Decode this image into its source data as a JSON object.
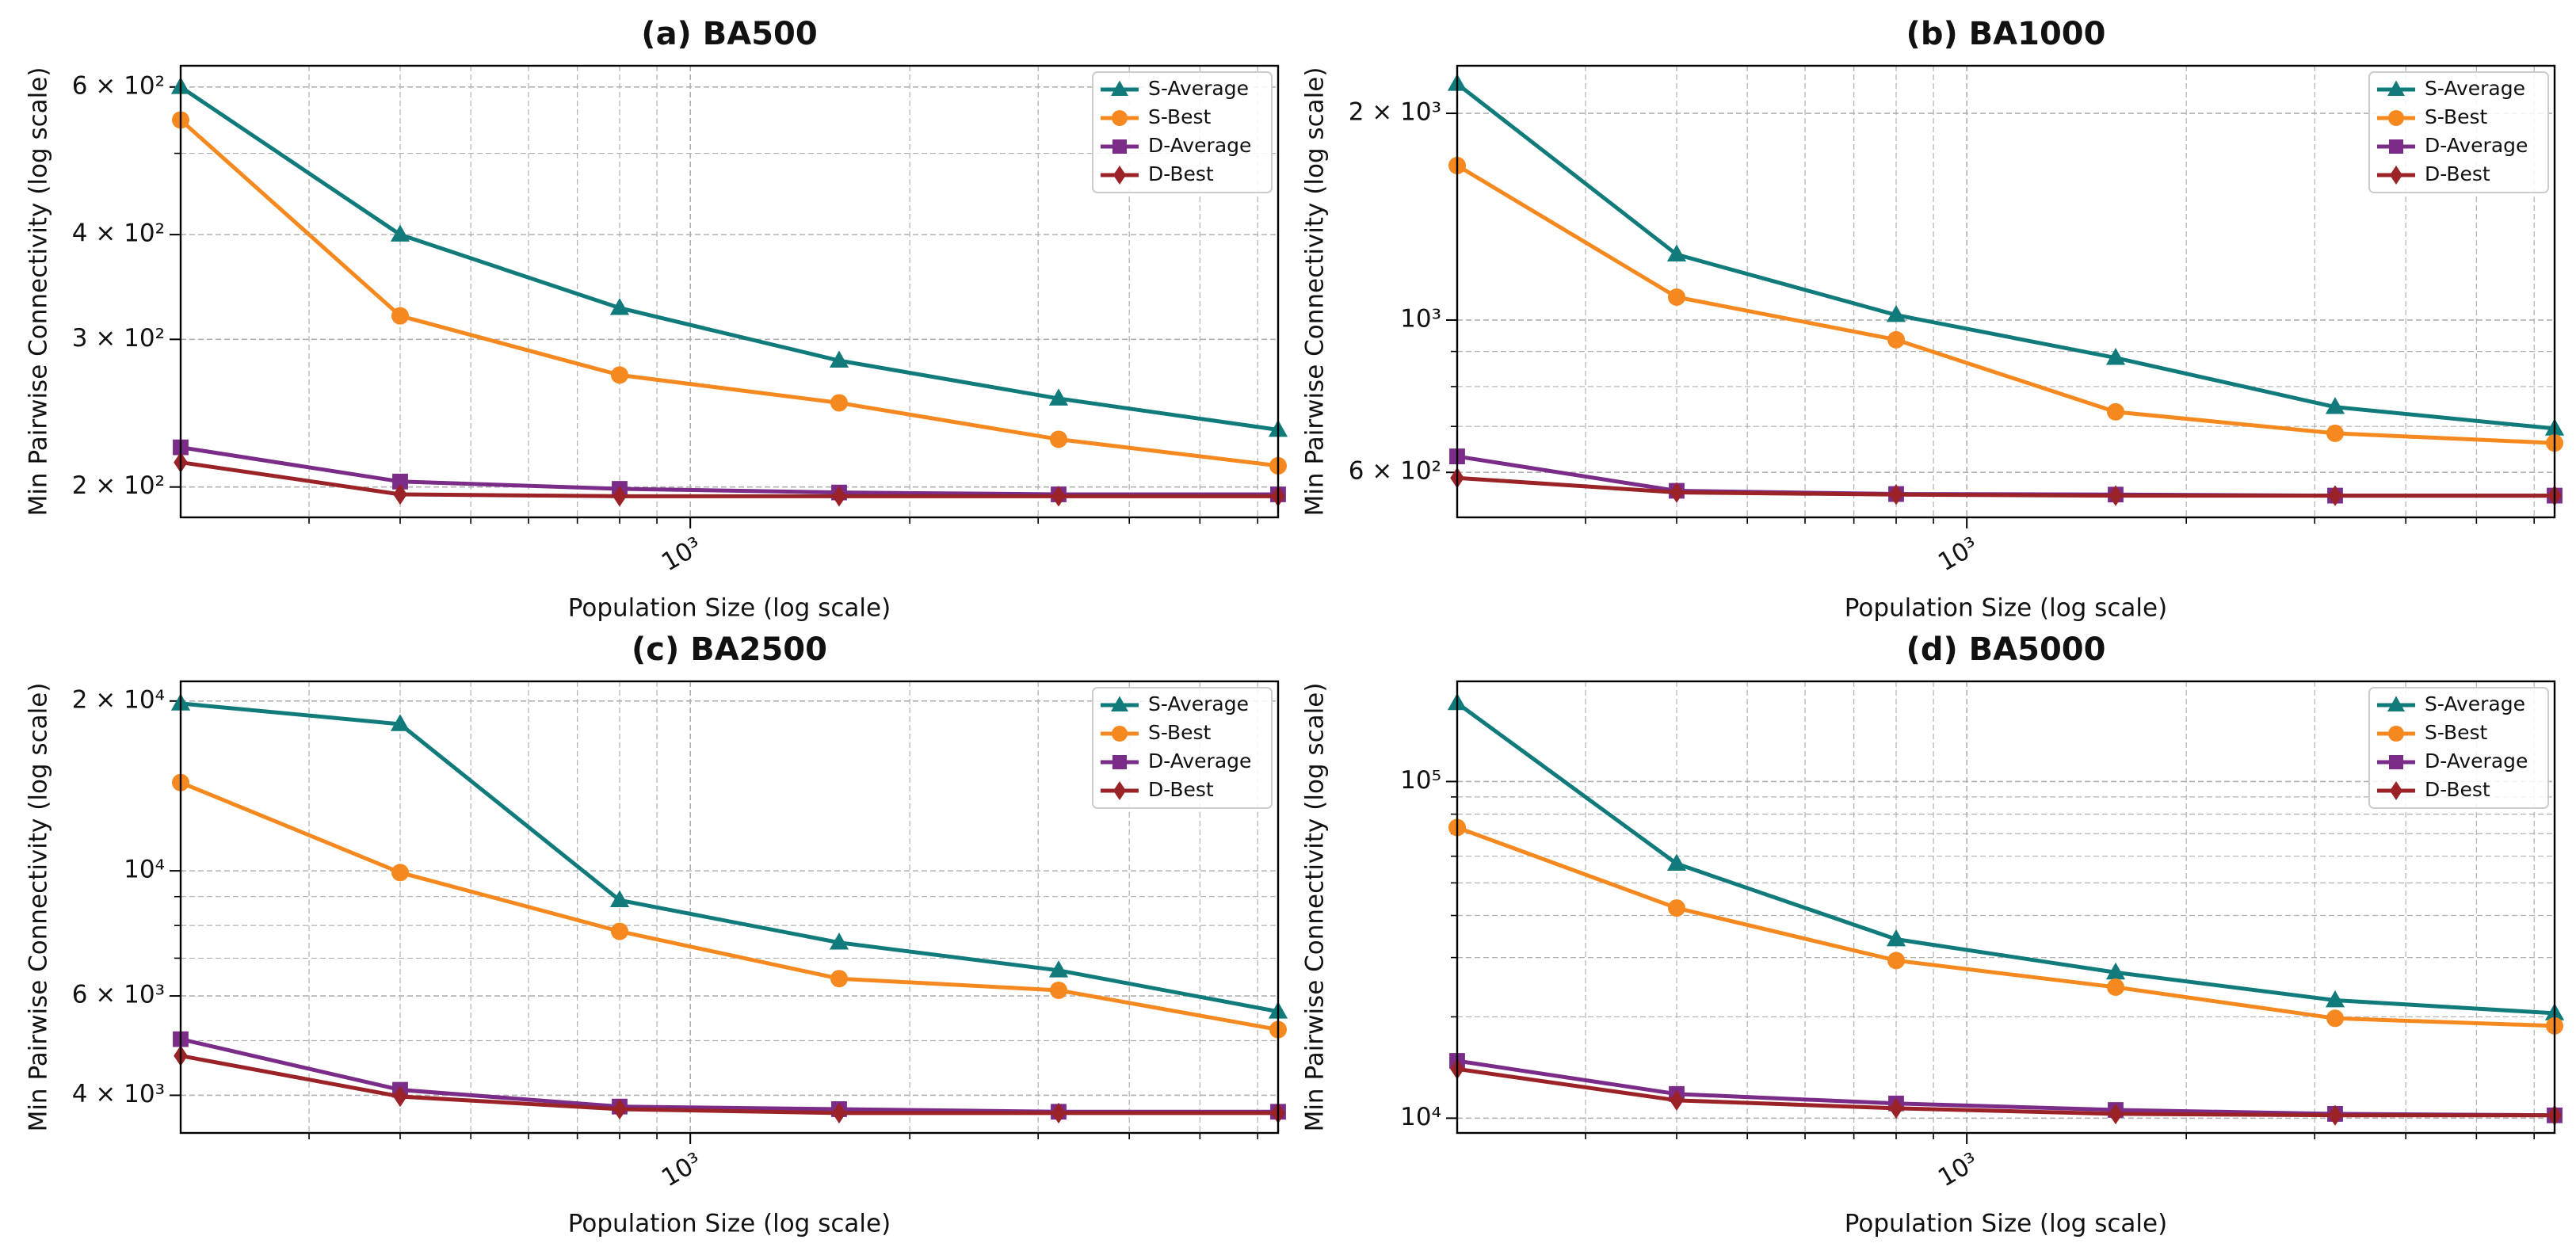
{
  "chart_data": [
    {
      "type": "line",
      "title": "(a) BA500",
      "xlabel": "Population Size (log scale)",
      "ylabel": "Min Pairwise Connectivity (log scale)",
      "xscale": "log",
      "yscale": "log",
      "grid": true,
      "legend": "upper right",
      "x": [
        200,
        400,
        800,
        1600,
        3200,
        6400
      ],
      "xlim": [
        200,
        6400
      ],
      "xticks": [
        {
          "value": 1000,
          "label": "10³"
        }
      ],
      "xminor": [
        300,
        400,
        500,
        600,
        700,
        800,
        900,
        2000,
        3000,
        4000,
        5000,
        6000
      ],
      "ylim": [
        184,
        636
      ],
      "yticks": [
        {
          "value": 200,
          "label": "2 × 10²"
        },
        {
          "value": 300,
          "label": "3 × 10²"
        },
        {
          "value": 400,
          "label": "4 × 10²"
        },
        {
          "value": 600,
          "label": "6 × 10²"
        }
      ],
      "yminor": [
        500
      ],
      "series": [
        {
          "name": "S-Average",
          "color": "#117b7b",
          "marker": "triangle",
          "values": [
            600,
            400,
            327,
            283,
            255,
            234
          ]
        },
        {
          "name": "S-Best",
          "color": "#f5891f",
          "marker": "circle",
          "values": [
            548,
            320,
            272,
            252,
            228,
            212
          ]
        },
        {
          "name": "D-Average",
          "color": "#7a2c88",
          "marker": "square",
          "values": [
            223,
            203,
            199,
            197,
            196,
            196
          ]
        },
        {
          "name": "D-Best",
          "color": "#9b2226",
          "marker": "diamond",
          "values": [
            214,
            196,
            195,
            195,
            195,
            195
          ]
        }
      ]
    },
    {
      "type": "line",
      "title": "(b) BA1000",
      "xlabel": "Population Size (log scale)",
      "ylabel": "Min Pairwise Connectivity (log scale)",
      "xscale": "log",
      "yscale": "log",
      "grid": true,
      "legend": "upper right",
      "x": [
        200,
        400,
        800,
        1600,
        3200,
        6400
      ],
      "xlim": [
        200,
        6400
      ],
      "xticks": [
        {
          "value": 1000,
          "label": "10³"
        }
      ],
      "xminor": [
        300,
        400,
        500,
        600,
        700,
        800,
        900,
        2000,
        3000,
        4000,
        5000,
        6000
      ],
      "ylim": [
        516,
        2346
      ],
      "yticks": [
        {
          "value": 600,
          "label": "6 × 10²"
        },
        {
          "value": 1000,
          "label": "10³"
        },
        {
          "value": 2000,
          "label": "2 × 10³"
        }
      ],
      "yminor": [
        700,
        800,
        900
      ],
      "series": [
        {
          "name": "S-Average",
          "color": "#117b7b",
          "marker": "triangle",
          "values": [
            2208,
            1246,
            1017,
            881,
            747,
            695
          ]
        },
        {
          "name": "S-Best",
          "color": "#f5891f",
          "marker": "circle",
          "values": [
            1679,
            1080,
            936,
            735,
            684,
            662
          ]
        },
        {
          "name": "D-Average",
          "color": "#7a2c88",
          "marker": "square",
          "values": [
            633,
            564,
            558,
            557,
            555,
            555
          ]
        },
        {
          "name": "D-Best",
          "color": "#9b2226",
          "marker": "diamond",
          "values": [
            589,
            561,
            557,
            555,
            555,
            555
          ]
        }
      ]
    },
    {
      "type": "line",
      "title": "(c) BA2500",
      "xlabel": "Population Size (log scale)",
      "ylabel": "Min Pairwise Connectivity (log scale)",
      "xscale": "log",
      "yscale": "log",
      "grid": true,
      "legend": "upper right",
      "x": [
        200,
        400,
        800,
        1600,
        3200,
        6400
      ],
      "xlim": [
        200,
        6400
      ],
      "xticks": [
        {
          "value": 1000,
          "label": "10³"
        }
      ],
      "xminor": [
        300,
        400,
        500,
        600,
        700,
        800,
        900,
        2000,
        3000,
        4000,
        5000,
        6000
      ],
      "ylim": [
        3430,
        21670
      ],
      "yticks": [
        {
          "value": 4000,
          "label": "4 × 10³"
        },
        {
          "value": 6000,
          "label": "6 × 10³"
        },
        {
          "value": 10000,
          "label": "10⁴"
        },
        {
          "value": 20000,
          "label": "2 × 10⁴"
        }
      ],
      "yminor": [
        5000,
        7000,
        8000,
        9000
      ],
      "series": [
        {
          "name": "S-Average",
          "color": "#117b7b",
          "marker": "triangle",
          "values": [
            19800,
            18200,
            8870,
            7460,
            6660,
            5630
          ]
        },
        {
          "name": "S-Best",
          "color": "#f5891f",
          "marker": "circle",
          "values": [
            14340,
            9930,
            7810,
            6440,
            6140,
            5230
          ]
        },
        {
          "name": "D-Average",
          "color": "#7a2c88",
          "marker": "square",
          "values": [
            5030,
            4090,
            3820,
            3780,
            3740,
            3740
          ]
        },
        {
          "name": "D-Best",
          "color": "#9b2226",
          "marker": "diamond",
          "values": [
            4700,
            3980,
            3780,
            3720,
            3720,
            3720
          ]
        }
      ]
    },
    {
      "type": "line",
      "title": "(d) BA5000",
      "xlabel": "Population Size (log scale)",
      "ylabel": "Min Pairwise Connectivity (log scale)",
      "xscale": "log",
      "yscale": "log",
      "grid": true,
      "legend": "upper right",
      "x": [
        200,
        400,
        800,
        1600,
        3200,
        6400
      ],
      "xlim": [
        200,
        6400
      ],
      "xticks": [
        {
          "value": 1000,
          "label": "10³"
        }
      ],
      "xminor": [
        300,
        400,
        500,
        600,
        700,
        800,
        900,
        2000,
        3000,
        4000,
        5000,
        6000
      ],
      "ylim": [
        9040,
        198400
      ],
      "yticks": [
        {
          "value": 10000,
          "label": "10⁴"
        },
        {
          "value": 100000,
          "label": "10⁵"
        }
      ],
      "yminor": [
        20000,
        30000,
        40000,
        50000,
        60000,
        70000,
        80000,
        90000
      ],
      "series": [
        {
          "name": "S-Average",
          "color": "#117b7b",
          "marker": "triangle",
          "values": [
            171000,
            57000,
            34000,
            27100,
            22400,
            20500
          ]
        },
        {
          "name": "S-Best",
          "color": "#f5891f",
          "marker": "circle",
          "values": [
            73000,
            42100,
            29400,
            24500,
            19800,
            18800
          ]
        },
        {
          "name": "D-Average",
          "color": "#7a2c88",
          "marker": "square",
          "values": [
            14800,
            11800,
            11060,
            10580,
            10300,
            10200
          ]
        },
        {
          "name": "D-Best",
          "color": "#9b2226",
          "marker": "diamond",
          "values": [
            14000,
            11300,
            10700,
            10300,
            10200,
            10200
          ]
        }
      ]
    }
  ]
}
